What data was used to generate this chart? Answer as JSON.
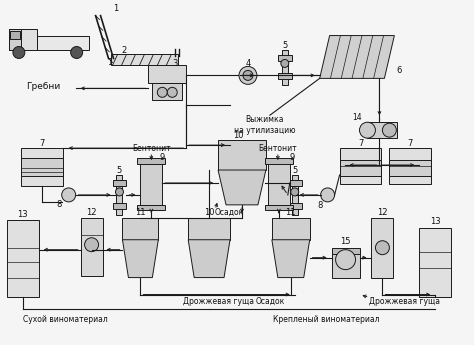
{
  "background_color": "#f0f0f0",
  "line_color": "#1a1a1a",
  "fig_width": 4.74,
  "fig_height": 3.45,
  "labels": {
    "grebni": "Гребни",
    "vyzhimka": "Выжимка\nна утилизацию",
    "bentonit1": "Бентонит",
    "bentonit2": "Бентонит",
    "osadok_mid": "Осадок",
    "drozhzhevaya1": "Дрожжевая гуща",
    "drozhzhevaya2": "Дрожжевая гуща",
    "osadok_bot": "Осадок",
    "suhoy": "Сухой виноматериал",
    "kreplyony": "Крепленый виноматериал"
  }
}
